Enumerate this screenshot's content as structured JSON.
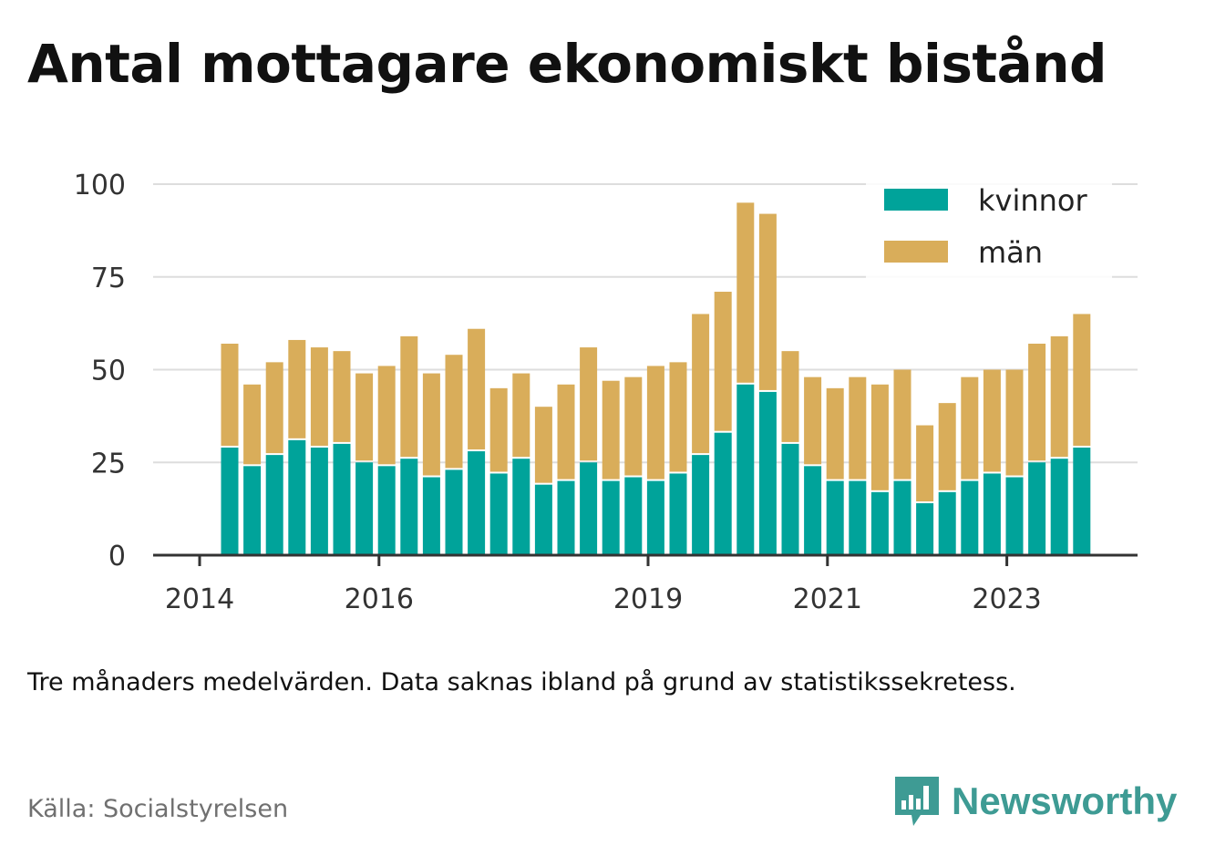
{
  "title": "Antal mottagare ekonomiskt bistånd",
  "note": "Tre månaders medelvärden. Data saknas ibland på grund av statistikssekretess.",
  "source": "Källa: Socialstyrelsen",
  "brand": {
    "name": "Newsworthy",
    "icon": "newsworthy-logo-icon",
    "color": "#3e9b94"
  },
  "chart_data": {
    "type": "bar",
    "stacked": true,
    "categories": [
      "2014-Q2",
      "2014-Q3",
      "2014-Q4",
      "2015-Q1",
      "2015-Q2",
      "2015-Q3",
      "2015-Q4",
      "2016-Q1",
      "2016-Q2",
      "2016-Q3",
      "2016-Q4",
      "2017-Q1",
      "2017-Q2",
      "2017-Q3",
      "2017-Q4",
      "2018-Q1",
      "2018-Q2",
      "2018-Q3",
      "2018-Q4",
      "2019-Q1",
      "2019-Q2",
      "2019-Q3",
      "2019-Q4",
      "2020-Q1",
      "2020-Q2",
      "2020-Q3",
      "2020-Q4",
      "2021-Q1",
      "2021-Q2",
      "2021-Q3",
      "2021-Q4",
      "2022-Q1",
      "2022-Q2",
      "2022-Q3",
      "2022-Q4",
      "2023-Q1",
      "2023-Q2",
      "2023-Q3",
      "2023-Q4"
    ],
    "series": [
      {
        "name": "kvinnor",
        "color": "#00a39a",
        "values": [
          29,
          24,
          27,
          31,
          29,
          30,
          25,
          24,
          26,
          21,
          23,
          28,
          22,
          26,
          19,
          20,
          25,
          20,
          21,
          20,
          22,
          27,
          33,
          46,
          44,
          30,
          24,
          20,
          20,
          17,
          20,
          14,
          17,
          20,
          22,
          21,
          25,
          26,
          29
        ]
      },
      {
        "name": "män",
        "color": "#d9ad5a",
        "values": [
          28,
          22,
          25,
          27,
          27,
          25,
          24,
          27,
          33,
          28,
          31,
          33,
          23,
          23,
          21,
          26,
          31,
          27,
          27,
          31,
          30,
          38,
          38,
          49,
          48,
          25,
          24,
          25,
          28,
          29,
          30,
          21,
          24,
          28,
          28,
          29,
          32,
          33,
          36
        ]
      }
    ],
    "yticks": [
      0,
      25,
      50,
      75,
      100
    ],
    "ylim": [
      0,
      100
    ],
    "xticks": [
      {
        "label": "2014",
        "at": 0
      },
      {
        "label": "2016",
        "at": 8
      },
      {
        "label": "2019",
        "at": 20
      },
      {
        "label": "2021",
        "at": 28
      },
      {
        "label": "2023",
        "at": 36
      }
    ],
    "xlabel": "",
    "ylabel": "",
    "grid": true,
    "legend": "top-right",
    "gridColor": "#dddddd",
    "axisColor": "#333333"
  }
}
